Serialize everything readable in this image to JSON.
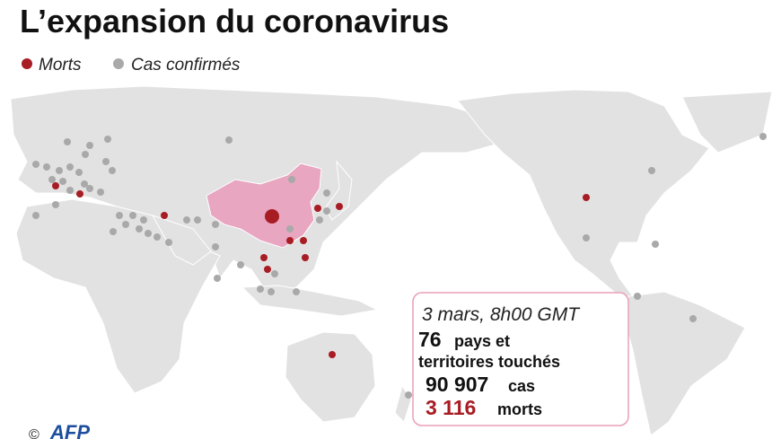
{
  "header": {
    "title": "L’expansion du coronavirus"
  },
  "legend": {
    "deaths": "Morts",
    "cases": "Cas confirmés"
  },
  "info": {
    "date": "3 mars, 8h00 GMT",
    "countries_number": "76",
    "countries_text1": "pays et",
    "countries_text2": "territoires touchés",
    "cases_number": "90 907",
    "cases_text": "cas",
    "deaths_number": "3 116",
    "deaths_text": "morts"
  },
  "credit": {
    "copyright": "©",
    "agency": "AFP"
  }
}
